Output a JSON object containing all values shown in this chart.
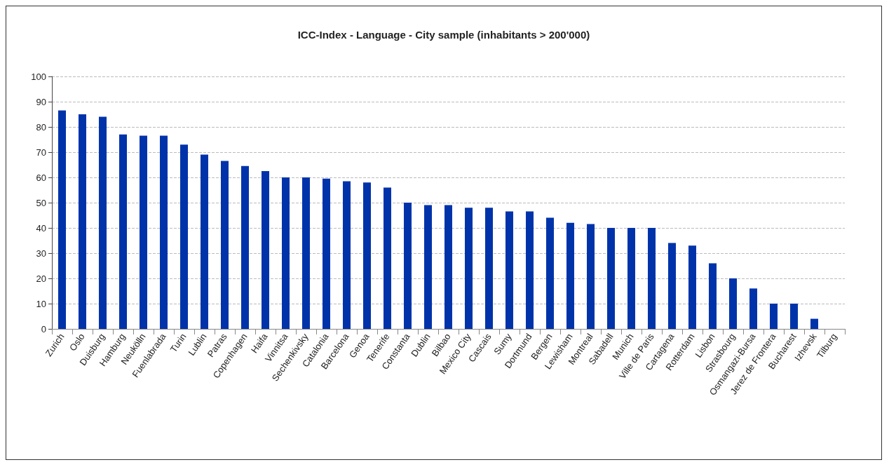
{
  "chart_data": {
    "type": "bar",
    "title": "ICC-Index - Language - City sample (inhabitants > 200'000)",
    "categories": [
      "Zurich",
      "Oslo",
      "Duisburg",
      "Hamburg",
      "Neukölln",
      "Fuenlabrada",
      "Turin",
      "Lublin",
      "Patras",
      "Copenhagen",
      "Haifa",
      "Vinnitsa",
      "Sechenkivsky",
      "Catalonia",
      "Barcelona",
      "Genoa",
      "Tenerife",
      "Constanta",
      "Dublin",
      "Bilbao",
      "Mexico City",
      "Cascais",
      "Sumy",
      "Dortmund",
      "Bergen",
      "Lewisham",
      "Montreal",
      "Sabadell",
      "Munich",
      "Ville de Paris",
      "Cartagena",
      "Rotterdam",
      "Lisbon",
      "Strasbourg",
      "Osmangazi-Bursa",
      "Jerez de Frontera",
      "Bucharest",
      "Izhevsk",
      "Tilburg"
    ],
    "values": [
      86.5,
      85,
      84,
      77,
      76.5,
      76.5,
      73,
      69,
      66.5,
      64.5,
      62.5,
      60,
      60,
      59.5,
      58.5,
      58,
      56,
      50,
      49,
      49,
      48,
      48,
      46.5,
      46.5,
      44,
      42,
      41.5,
      40,
      40,
      40,
      34,
      33,
      26,
      20,
      16,
      10,
      10,
      4,
      0
    ],
    "color": "#0033aa",
    "ylim": [
      0,
      100
    ],
    "yticks": [
      0,
      10,
      20,
      30,
      40,
      50,
      60,
      70,
      80,
      90,
      100
    ],
    "grid": "y"
  }
}
